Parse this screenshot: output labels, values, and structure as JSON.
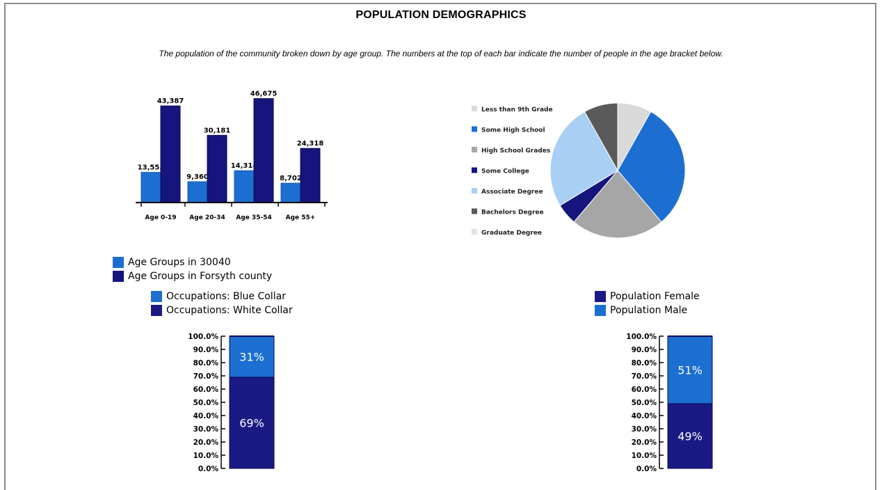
{
  "page": {
    "title": "POPULATION DEMOGRAPHICS",
    "subtitle": "The population of the community broken down by age group. The numbers at the top of each bar indicate the number of people in the age bracket below."
  },
  "chart_data": [
    {
      "type": "bar",
      "categories": [
        "Age 0-19",
        "Age 20-34",
        "Age 35-54",
        "Age 55+"
      ],
      "series": [
        {
          "name": "Age Groups in 30040",
          "values": [
            13553,
            9360,
            14314,
            8702
          ],
          "color": "#1c6fd0"
        },
        {
          "name": "Age Groups in Forsyth county",
          "values": [
            43387,
            30181,
            46675,
            24318
          ],
          "color": "#15157d"
        }
      ],
      "data_labels": [
        [
          "13,553",
          "9,360",
          "14,314",
          "8,702"
        ],
        [
          "43,387",
          "30,181",
          "46,675",
          "24,318"
        ]
      ],
      "ylim": [
        0,
        50000
      ]
    },
    {
      "type": "pie",
      "labels": [
        "Less than 9th Grade",
        "Some High School",
        "High School Grades",
        "Some College",
        "Associate Degree",
        "Bachelors Degree",
        "Graduate Degree"
      ],
      "values": [
        8,
        30,
        22,
        5,
        25,
        8,
        0
      ],
      "colors": [
        "#d9d9d9",
        "#1c6fd0",
        "#a6a6a6",
        "#15157d",
        "#a9cff4",
        "#5a5a5a",
        "#e2e2e2"
      ]
    },
    {
      "type": "bar",
      "stacked": true,
      "categories": [
        ""
      ],
      "series": [
        {
          "name": "Occupations: White Collar",
          "values": [
            69
          ],
          "label": "69%",
          "color": "#1a1a85"
        },
        {
          "name": "Occupations: Blue Collar",
          "values": [
            31
          ],
          "label": "31%",
          "color": "#1c6fd0"
        }
      ],
      "ytick_labels": [
        "0.0%",
        "10.0%",
        "20.0%",
        "30.0%",
        "40.0%",
        "50.0%",
        "60.0%",
        "70.0%",
        "80.0%",
        "90.0%",
        "100.0%"
      ],
      "ylim": [
        0,
        100
      ]
    },
    {
      "type": "bar",
      "stacked": true,
      "categories": [
        ""
      ],
      "series": [
        {
          "name": "Population Female",
          "values": [
            49
          ],
          "label": "49%",
          "color": "#1a1a85"
        },
        {
          "name": "Population Male",
          "values": [
            51
          ],
          "label": "51%",
          "color": "#1c6fd0"
        }
      ],
      "ytick_labels": [
        "0.0%",
        "10.0%",
        "20.0%",
        "30.0%",
        "40.0%",
        "50.0%",
        "60.0%",
        "70.0%",
        "80.0%",
        "90.0%",
        "100.0%"
      ],
      "ylim": [
        0,
        100
      ]
    }
  ]
}
